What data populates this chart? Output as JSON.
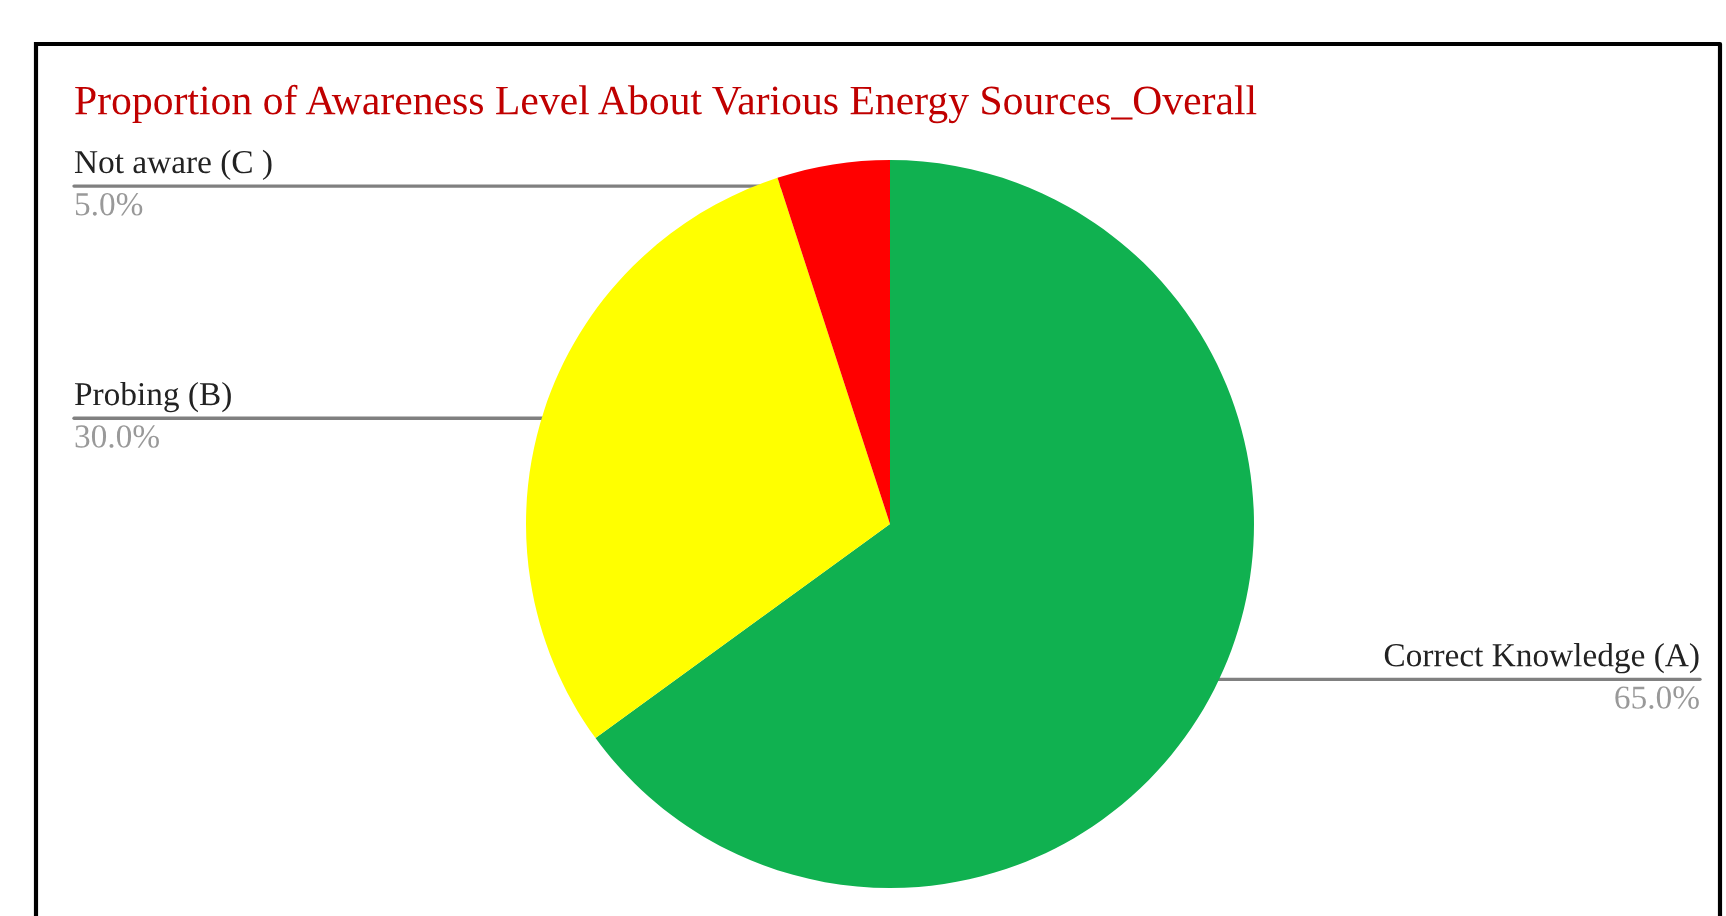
{
  "chart_data": {
    "type": "pie",
    "title": "Proportion of Awareness Level About Various Energy Sources_Overall",
    "categories": [
      "Correct Knowledge (A)",
      "Probing (B)",
      "Not aware (C )"
    ],
    "values": [
      65,
      30,
      5
    ],
    "colors": [
      "#10b150",
      "#ffff00",
      "#ff0000"
    ],
    "value_labels": [
      "65.0%",
      "30.0%",
      "5.0%"
    ]
  }
}
